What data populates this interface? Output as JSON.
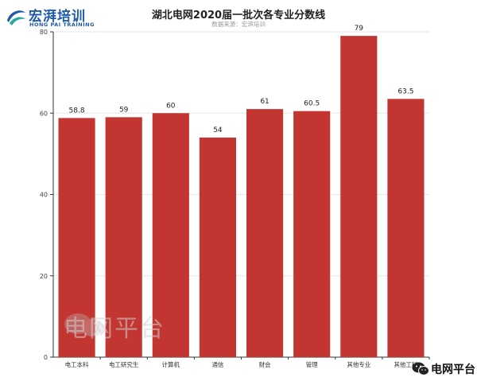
{
  "brand": {
    "name": "宏湃培训",
    "subname": "HONG PAI TRAINING",
    "mark_color": "#1e5aa8",
    "accent_color": "#2aa7a0"
  },
  "watermark": {
    "text": "电网平台",
    "icon": "wechat-icon"
  },
  "platform_badge": {
    "text": "电网平台",
    "icon": "wechat-icon"
  },
  "bar_color": "#c23531",
  "chart_data": {
    "type": "bar",
    "title": "湖北电网2020届一批次各专业分数线",
    "subtitle": "数据来源：宏湃培训",
    "categories": [
      "电工本科",
      "电工研究生",
      "计算机",
      "通信",
      "财会",
      "管理",
      "其他专业",
      "其他工科"
    ],
    "values": [
      58.8,
      59,
      60,
      54,
      61,
      60.5,
      79,
      63.5
    ],
    "value_labels": [
      "58.8",
      "59",
      "60",
      "54",
      "61",
      "60.5",
      "79",
      "63.5"
    ],
    "y_ticks": [
      "0",
      "20",
      "40",
      "60",
      "80"
    ],
    "ylim": [
      0,
      80
    ],
    "xlabel": "",
    "ylabel": "",
    "grid": true,
    "legend": "none"
  }
}
